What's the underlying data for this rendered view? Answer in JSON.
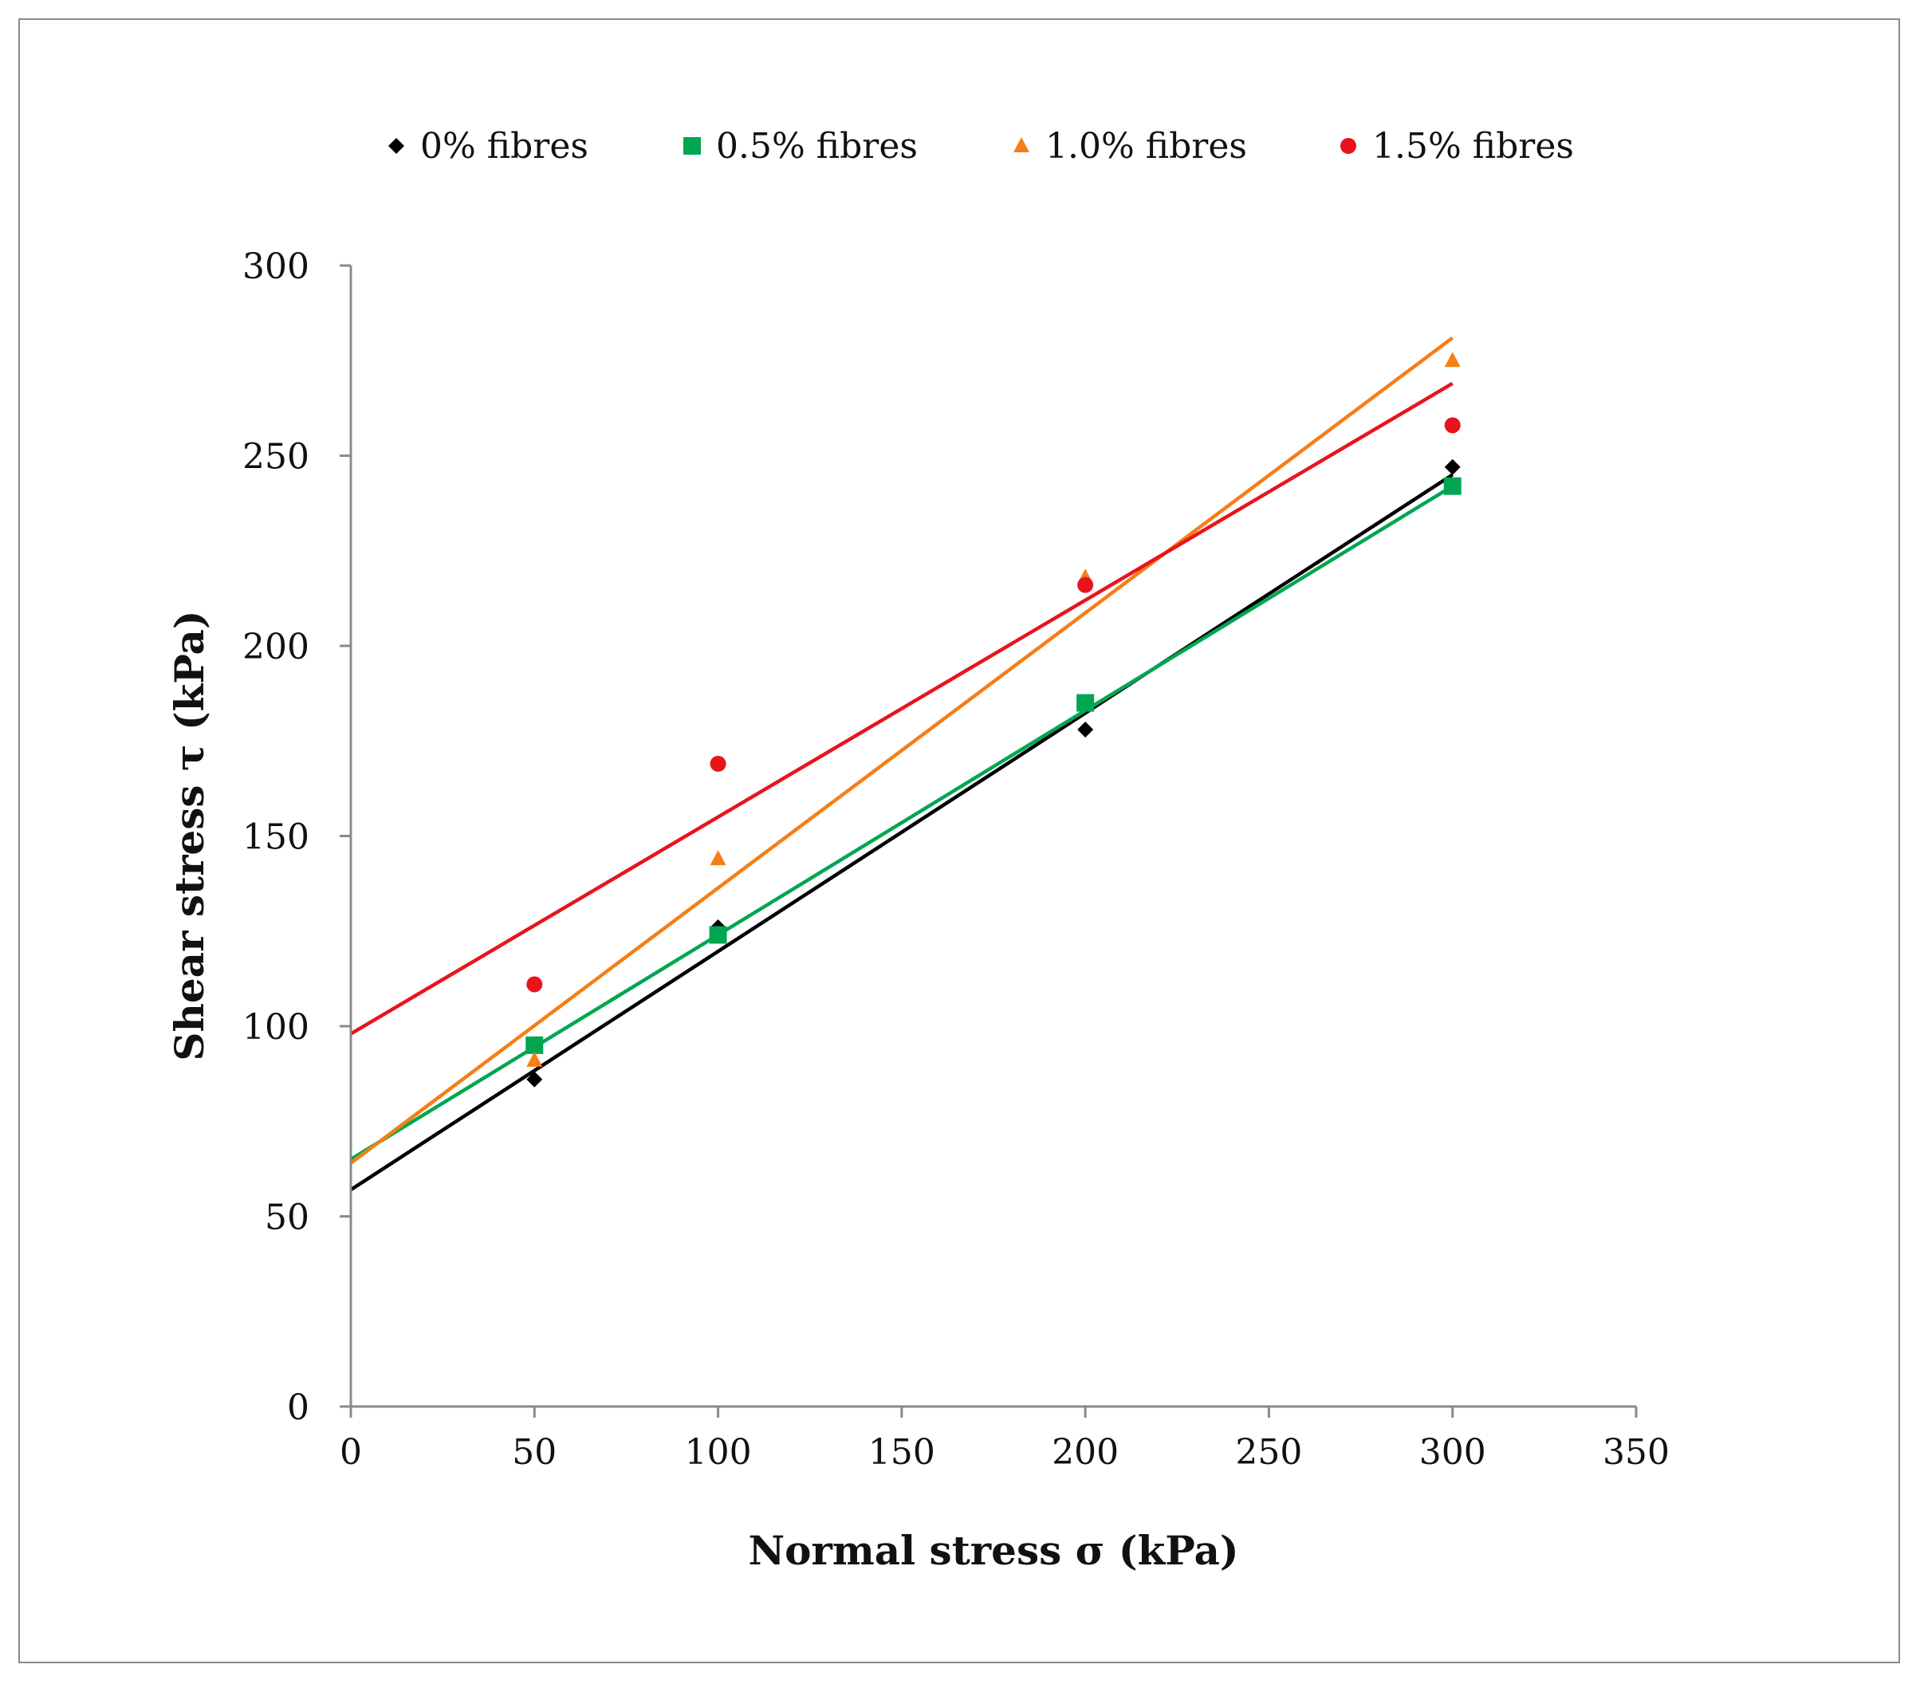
{
  "chart_data": {
    "type": "scatter",
    "title": "",
    "xlabel": "Normal stress σ (kPa)",
    "ylabel": "Shear stress τ (kPa)",
    "xlim": [
      0,
      350
    ],
    "ylim": [
      0,
      300
    ],
    "x_ticks": [
      0,
      50,
      100,
      150,
      200,
      250,
      300,
      350
    ],
    "y_ticks": [
      0,
      50,
      100,
      150,
      200,
      250,
      300
    ],
    "x_tick_labels": [
      "0",
      "50",
      "100",
      "150",
      "200",
      "250",
      "300",
      "350"
    ],
    "y_tick_labels": [
      "0",
      "50",
      "100",
      "150",
      "200",
      "250",
      "300"
    ],
    "grid": false,
    "legend_position": "top",
    "series": [
      {
        "name": "0% fibres",
        "marker": "diamond",
        "color": "#000000",
        "x": [
          50,
          100,
          200,
          300
        ],
        "y": [
          86,
          126,
          178,
          247
        ],
        "trendline": {
          "intercept": 57,
          "end": [
            300,
            245
          ]
        }
      },
      {
        "name": "0.5% fibres",
        "marker": "square",
        "color": "#00a651",
        "x": [
          50,
          100,
          200,
          300
        ],
        "y": [
          95,
          124,
          185,
          242
        ],
        "trendline": {
          "intercept": 65,
          "end": [
            300,
            242
          ]
        }
      },
      {
        "name": "1.0% fibres",
        "marker": "triangle",
        "color": "#f57f17",
        "x": [
          50,
          100,
          200,
          300
        ],
        "y": [
          91,
          144,
          218,
          275
        ],
        "trendline": {
          "intercept": 64,
          "end": [
            300,
            281
          ]
        }
      },
      {
        "name": "1.5% fibres",
        "marker": "circle",
        "color": "#e8141c",
        "x": [
          50,
          100,
          200,
          300
        ],
        "y": [
          111,
          169,
          216,
          258
        ],
        "trendline": {
          "intercept": 98,
          "end": [
            300,
            269
          ]
        }
      }
    ]
  }
}
